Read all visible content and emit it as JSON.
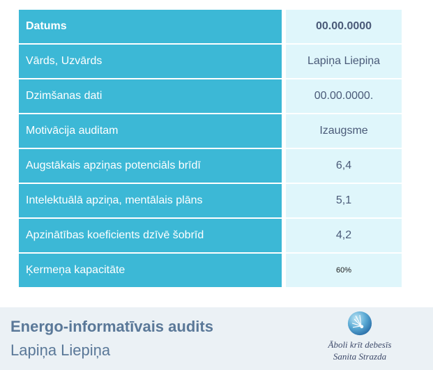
{
  "table": {
    "rows": [
      {
        "label": "Datums",
        "value": "00.00.0000"
      },
      {
        "label": "Vārds, Uzvārds",
        "value": "Lapiņa Liepiņa"
      },
      {
        "label": "Dzimšanas dati",
        "value": "00.00.0000."
      },
      {
        "label": "Motivācija auditam",
        "value": "Izaugsme"
      },
      {
        "label": "Augstākais apziņas potenciāls brīdī",
        "value": "6,4"
      },
      {
        "label": "Intelektuālā apziņa, mentālais plāns",
        "value": "5,1"
      },
      {
        "label": "Apzinātības koeficients dzīvē šobrīd",
        "value": "4,2"
      },
      {
        "label": "Ķermeņa kapacitāte",
        "value": "60%"
      }
    ]
  },
  "footer": {
    "title": "Energo-informatīvais audits",
    "name": "Lapiņa Liepiņa",
    "brand_line1": "Āboli krīt debesīs",
    "brand_line2": "Sanita Strazda",
    "logo_icon": "blue-sphere-star-icon"
  },
  "colors": {
    "label_bg": "#3cb8d6",
    "value_bg": "#dff6fb",
    "footer_bg": "#ebf1f5",
    "footer_text": "#5a7898"
  }
}
